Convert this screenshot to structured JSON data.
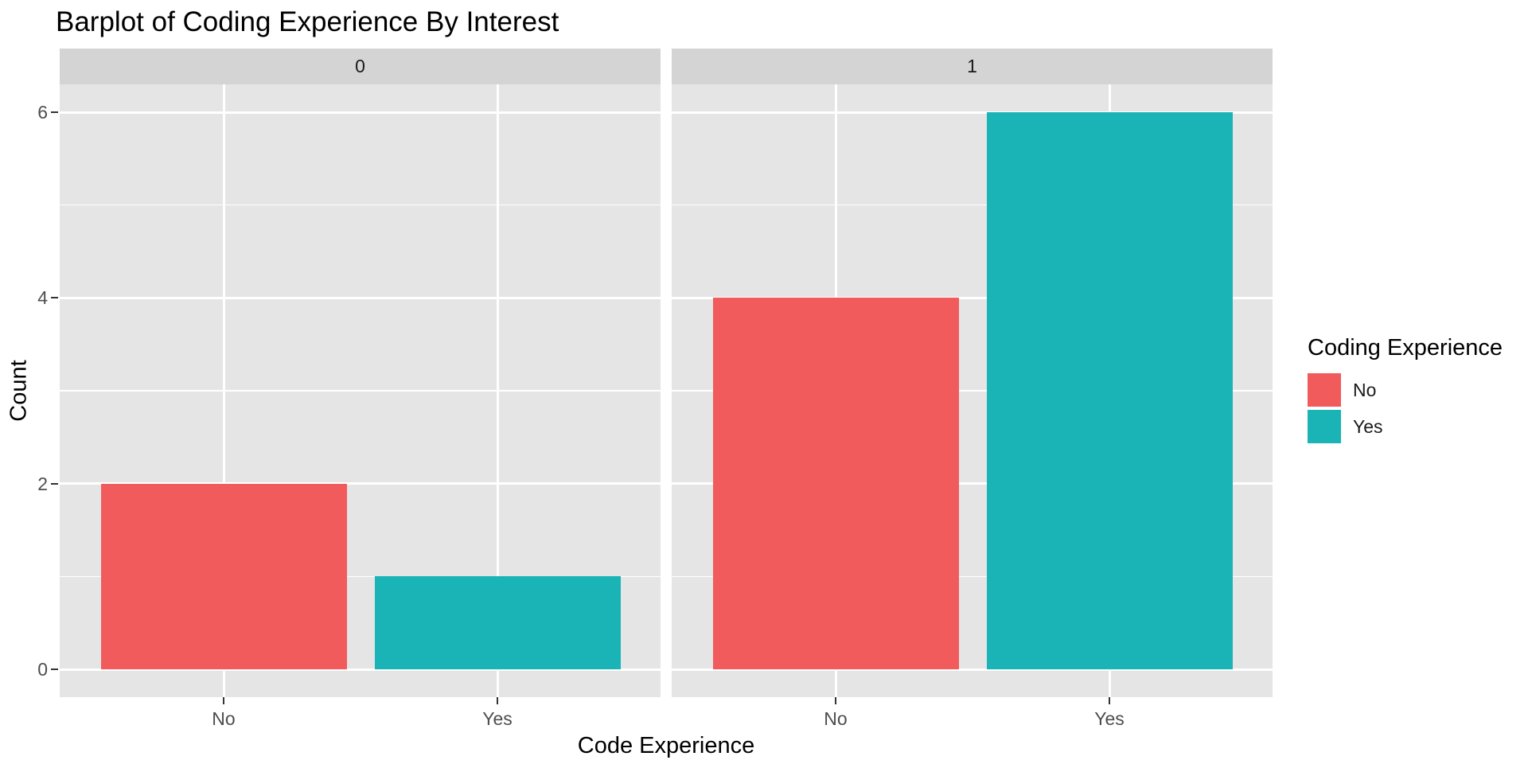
{
  "title": "Barplot of Coding Experience By Interest",
  "chart_data": {
    "type": "bar",
    "title": "Barplot of Coding Experience By Interest",
    "xlabel": "Code Experience",
    "ylabel": "Count",
    "x_categories": [
      "No",
      "Yes"
    ],
    "facets": [
      {
        "label": "0",
        "bars": [
          {
            "category": "No",
            "value": 2
          },
          {
            "category": "Yes",
            "value": 1
          }
        ]
      },
      {
        "label": "1",
        "bars": [
          {
            "category": "No",
            "value": 4
          },
          {
            "category": "Yes",
            "value": 6
          }
        ]
      }
    ],
    "y_ticks_major": [
      0,
      2,
      4,
      6
    ],
    "y_ticks_minor": [
      1,
      3,
      5
    ],
    "ylim": [
      -0.3,
      6.3
    ],
    "grid": true,
    "legend": {
      "title": "Coding Experience",
      "position": "right",
      "entries": [
        {
          "label": "No",
          "color": "#F15B5B"
        },
        {
          "label": "Yes",
          "color": "#1AB4B7"
        }
      ]
    },
    "theme": {
      "panel_bg": "#E5E5E5",
      "strip_bg": "#D4D4D4",
      "grid_color": "#FFFFFF",
      "tick_label_color": "#4D4D4D",
      "strip_text_color": "#1A1A1A",
      "axis_title_color": "#000000",
      "tick_mark_color": "#333333",
      "bar_colors": {
        "No": "#F15B5B",
        "Yes": "#1AB4B7"
      }
    }
  }
}
